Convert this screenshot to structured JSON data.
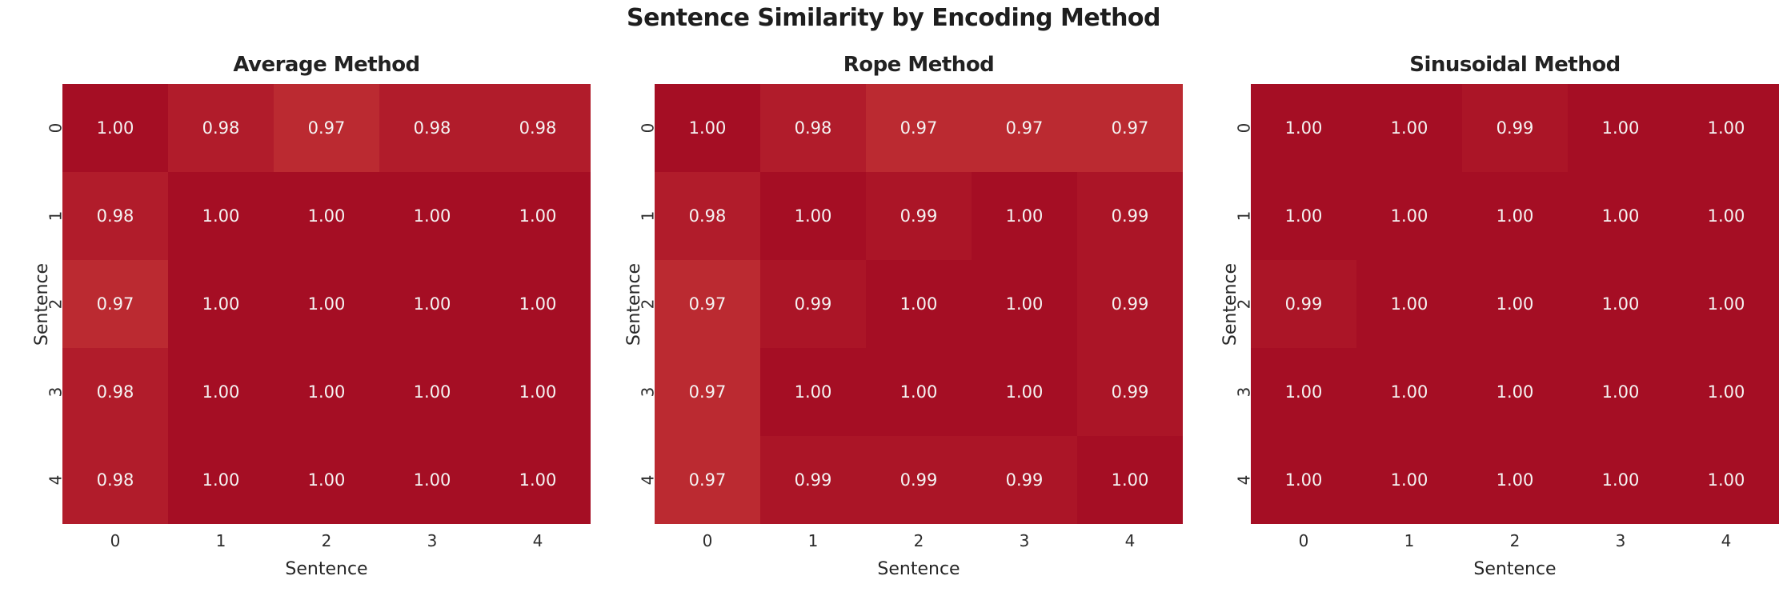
{
  "figure": {
    "suptitle": "Sentence Similarity by Encoding Method",
    "background_color": "#ffffff",
    "suptitle_color": "#1e1e1e"
  },
  "style": {
    "annotation_text_color": "#f5f3f2",
    "tick_text_color": "#2d2d2d",
    "value_colors": {
      "1.00": "#a50e24",
      "0.99": "#ab1527",
      "0.98": "#b11c2b",
      "0.97": "#bb2a31"
    }
  },
  "chart_data": [
    {
      "type": "heatmap",
      "title": "Average Method",
      "xlabel": "Sentence",
      "ylabel": "Sentence",
      "x_tick_labels": [
        "0",
        "1",
        "2",
        "3",
        "4"
      ],
      "y_tick_labels": [
        "0",
        "1",
        "2",
        "3",
        "4"
      ],
      "values": [
        [
          1.0,
          0.98,
          0.97,
          0.98,
          0.98
        ],
        [
          0.98,
          1.0,
          1.0,
          1.0,
          1.0
        ],
        [
          0.97,
          1.0,
          1.0,
          1.0,
          1.0
        ],
        [
          0.98,
          1.0,
          1.0,
          1.0,
          1.0
        ],
        [
          0.98,
          1.0,
          1.0,
          1.0,
          1.0
        ]
      ],
      "annot": [
        [
          "1.00",
          "0.98",
          "0.97",
          "0.98",
          "0.98"
        ],
        [
          "0.98",
          "1.00",
          "1.00",
          "1.00",
          "1.00"
        ],
        [
          "0.97",
          "1.00",
          "1.00",
          "1.00",
          "1.00"
        ],
        [
          "0.98",
          "1.00",
          "1.00",
          "1.00",
          "1.00"
        ],
        [
          "0.98",
          "1.00",
          "1.00",
          "1.00",
          "1.00"
        ]
      ]
    },
    {
      "type": "heatmap",
      "title": "Rope Method",
      "xlabel": "Sentence",
      "ylabel": "Sentence",
      "x_tick_labels": [
        "0",
        "1",
        "2",
        "3",
        "4"
      ],
      "y_tick_labels": [
        "0",
        "1",
        "2",
        "3",
        "4"
      ],
      "values": [
        [
          1.0,
          0.98,
          0.97,
          0.97,
          0.97
        ],
        [
          0.98,
          1.0,
          0.99,
          1.0,
          0.99
        ],
        [
          0.97,
          0.99,
          1.0,
          1.0,
          0.99
        ],
        [
          0.97,
          1.0,
          1.0,
          1.0,
          0.99
        ],
        [
          0.97,
          0.99,
          0.99,
          0.99,
          1.0
        ]
      ],
      "annot": [
        [
          "1.00",
          "0.98",
          "0.97",
          "0.97",
          "0.97"
        ],
        [
          "0.98",
          "1.00",
          "0.99",
          "1.00",
          "0.99"
        ],
        [
          "0.97",
          "0.99",
          "1.00",
          "1.00",
          "0.99"
        ],
        [
          "0.97",
          "1.00",
          "1.00",
          "1.00",
          "0.99"
        ],
        [
          "0.97",
          "0.99",
          "0.99",
          "0.99",
          "1.00"
        ]
      ]
    },
    {
      "type": "heatmap",
      "title": "Sinusoidal Method",
      "xlabel": "Sentence",
      "ylabel": "Sentence",
      "x_tick_labels": [
        "0",
        "1",
        "2",
        "3",
        "4"
      ],
      "y_tick_labels": [
        "0",
        "1",
        "2",
        "3",
        "4"
      ],
      "values": [
        [
          1.0,
          1.0,
          0.99,
          1.0,
          1.0
        ],
        [
          1.0,
          1.0,
          1.0,
          1.0,
          1.0
        ],
        [
          0.99,
          1.0,
          1.0,
          1.0,
          1.0
        ],
        [
          1.0,
          1.0,
          1.0,
          1.0,
          1.0
        ],
        [
          1.0,
          1.0,
          1.0,
          1.0,
          1.0
        ]
      ],
      "annot": [
        [
          "1.00",
          "1.00",
          "0.99",
          "1.00",
          "1.00"
        ],
        [
          "1.00",
          "1.00",
          "1.00",
          "1.00",
          "1.00"
        ],
        [
          "0.99",
          "1.00",
          "1.00",
          "1.00",
          "1.00"
        ],
        [
          "1.00",
          "1.00",
          "1.00",
          "1.00",
          "1.00"
        ],
        [
          "1.00",
          "1.00",
          "1.00",
          "1.00",
          "1.00"
        ]
      ]
    }
  ]
}
